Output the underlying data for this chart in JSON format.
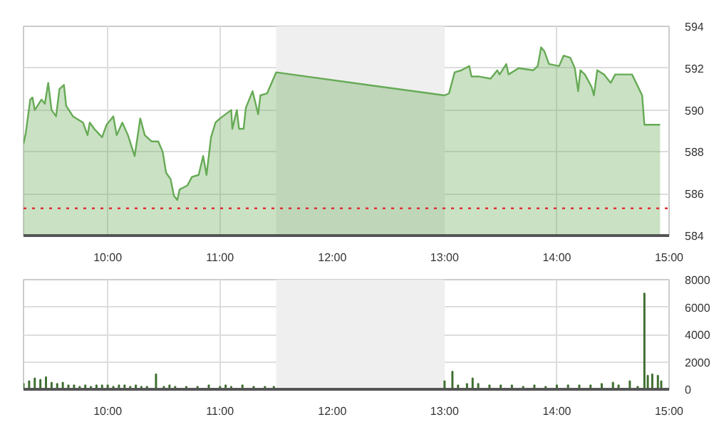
{
  "chart_data": [
    {
      "type": "area",
      "xlim": [
        9.25,
        15
      ],
      "ylim": [
        584,
        594
      ],
      "yticks": [
        584,
        586,
        588,
        590,
        592,
        594
      ],
      "xticks": [
        {
          "value": 10,
          "label": "10:00"
        },
        {
          "value": 11,
          "label": "11:00"
        },
        {
          "value": 12,
          "label": "12:00"
        },
        {
          "value": 13,
          "label": "13:00"
        },
        {
          "value": 14,
          "label": "14:00"
        },
        {
          "value": 15,
          "label": "15:00"
        }
      ],
      "grid": true,
      "bands": [
        {
          "axis": "x",
          "from": 11.5,
          "to": 13,
          "label": null,
          "color": "#efefef"
        }
      ],
      "ref_lines": [
        {
          "axis": "y",
          "value": 585.3,
          "label": null,
          "color": "#e03030",
          "line_style": "dotted"
        }
      ],
      "series": [
        {
          "color": "#66aa55",
          "x": [
            9.25,
            9.27,
            9.31,
            9.33,
            9.35,
            9.41,
            9.44,
            9.47,
            9.5,
            9.54,
            9.57,
            9.61,
            9.63,
            9.69,
            9.78,
            9.82,
            9.84,
            9.88,
            9.95,
            9.99,
            10.05,
            10.08,
            10.13,
            10.18,
            10.24,
            10.29,
            10.33,
            10.39,
            10.45,
            10.49,
            10.52,
            10.56,
            10.59,
            10.62,
            10.64,
            10.71,
            10.75,
            10.81,
            10.85,
            10.88,
            10.92,
            10.96,
            11.0,
            11.1,
            11.11,
            11.15,
            11.17,
            11.21,
            11.23,
            11.29,
            11.34,
            11.36,
            11.42,
            11.5,
            13.0,
            13.04,
            13.09,
            13.15,
            13.22,
            13.24,
            13.31,
            13.41,
            13.47,
            13.49,
            13.55,
            13.57,
            13.66,
            13.79,
            13.83,
            13.86,
            13.89,
            13.93,
            14.02,
            14.06,
            14.12,
            14.16,
            14.19,
            14.21,
            14.25,
            14.31,
            14.33,
            14.36,
            14.42,
            14.48,
            14.52,
            14.67,
            14.76,
            14.78,
            14.92
          ],
          "values": [
            588.4,
            588.9,
            590.5,
            590.6,
            590.0,
            590.5,
            590.3,
            591.3,
            590.0,
            589.7,
            591.0,
            591.2,
            590.2,
            589.7,
            589.4,
            588.8,
            589.4,
            589.1,
            588.7,
            589.3,
            589.7,
            588.8,
            589.4,
            588.8,
            587.8,
            589.6,
            588.8,
            588.5,
            588.5,
            588.0,
            587.0,
            586.7,
            585.9,
            585.7,
            586.2,
            586.4,
            586.8,
            586.9,
            587.8,
            586.9,
            588.7,
            589.4,
            589.6,
            590.0,
            589.1,
            590.0,
            589.1,
            589.1,
            590.1,
            590.9,
            589.8,
            590.7,
            590.8,
            591.8,
            590.7,
            590.8,
            591.8,
            591.9,
            592.1,
            591.6,
            591.6,
            591.5,
            591.9,
            591.7,
            592.2,
            591.7,
            592.0,
            591.9,
            592.1,
            593.0,
            592.8,
            592.2,
            592.1,
            592.6,
            592.5,
            592.0,
            590.9,
            591.9,
            591.7,
            591.1,
            590.7,
            591.9,
            591.7,
            591.3,
            591.7,
            591.7,
            590.7,
            589.3,
            589.3
          ]
        }
      ]
    },
    {
      "type": "bar",
      "xlim": [
        9.25,
        15
      ],
      "ylim": [
        0,
        8000
      ],
      "yticks": [
        0,
        2000,
        4000,
        6000,
        8000
      ],
      "xticks": [
        {
          "value": 10,
          "label": "10:00"
        },
        {
          "value": 11,
          "label": "11:00"
        },
        {
          "value": 12,
          "label": "12:00"
        },
        {
          "value": 13,
          "label": "13:00"
        },
        {
          "value": 14,
          "label": "14:00"
        },
        {
          "value": 15,
          "label": "15:00"
        }
      ],
      "grid": true,
      "bands": [
        {
          "axis": "x",
          "from": 11.5,
          "to": 13,
          "label": null,
          "color": "#efefef"
        }
      ],
      "series": [
        {
          "color": "#3d6e2e",
          "x": [
            9.25,
            9.3,
            9.35,
            9.4,
            9.45,
            9.5,
            9.55,
            9.6,
            9.65,
            9.7,
            9.75,
            9.8,
            9.85,
            9.9,
            9.95,
            10.0,
            10.05,
            10.1,
            10.15,
            10.2,
            10.25,
            10.3,
            10.35,
            10.43,
            10.5,
            10.55,
            10.6,
            10.7,
            10.8,
            10.9,
            11.0,
            11.05,
            11.1,
            11.2,
            11.3,
            11.4,
            11.48,
            13.0,
            13.07,
            13.12,
            13.2,
            13.25,
            13.3,
            13.4,
            13.5,
            13.6,
            13.7,
            13.8,
            13.9,
            14.0,
            14.1,
            14.2,
            14.3,
            14.4,
            14.5,
            14.55,
            14.65,
            14.72,
            14.78,
            14.81,
            14.85,
            14.9,
            14.93
          ],
          "values": [
            400,
            600,
            800,
            700,
            900,
            500,
            400,
            500,
            300,
            300,
            200,
            300,
            200,
            300,
            300,
            300,
            200,
            300,
            300,
            200,
            300,
            200,
            200,
            1100,
            200,
            300,
            200,
            200,
            200,
            300,
            200,
            300,
            200,
            300,
            200,
            200,
            200,
            600,
            1300,
            300,
            400,
            800,
            400,
            300,
            300,
            300,
            200,
            300,
            200,
            300,
            300,
            300,
            300,
            400,
            500,
            300,
            600,
            200,
            7000,
            1000,
            1100,
            1000,
            600
          ]
        }
      ]
    }
  ]
}
